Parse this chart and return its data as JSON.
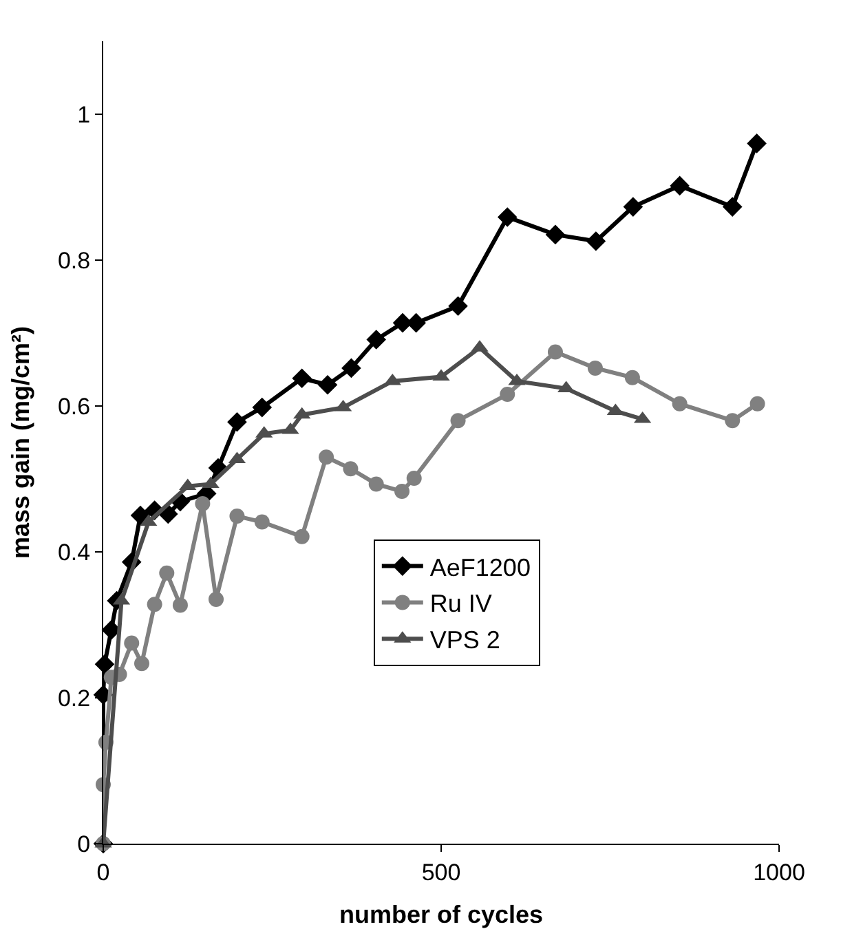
{
  "chart_data": {
    "type": "line",
    "xlabel": "number of cycles",
    "ylabel": "mass gain (mg/cm²)",
    "xlim": [
      0,
      1000
    ],
    "xticks": [
      0,
      500,
      1000
    ],
    "ylim": [
      0,
      1.1
    ],
    "yticks": [
      0,
      0.2,
      0.4,
      0.6,
      0.8,
      1
    ],
    "legend": "right",
    "line_style": "solid",
    "series": [
      {
        "name": "AeF1200",
        "color": "#000000",
        "marker": "diamond",
        "x": [
          0,
          0,
          2,
          12,
          20,
          42,
          55,
          76,
          96,
          114,
          153,
          170,
          198,
          235,
          294,
          332,
          367,
          404,
          443,
          463,
          525,
          598,
          669,
          729,
          784,
          853,
          931,
          967
        ],
        "values": [
          0,
          0.204,
          0.246,
          0.293,
          0.333,
          0.386,
          0.45,
          0.457,
          0.452,
          0.469,
          0.48,
          0.515,
          0.578,
          0.598,
          0.638,
          0.629,
          0.652,
          0.691,
          0.714,
          0.714,
          0.737,
          0.859,
          0.835,
          0.826,
          0.873,
          0.902,
          0.873,
          0.96
        ]
      },
      {
        "name": "Ru IV",
        "color": "#808080",
        "marker": "circle",
        "x": [
          0,
          0,
          4,
          12,
          24,
          42,
          57,
          76,
          94,
          114,
          147,
          167,
          198,
          235,
          294,
          330,
          366,
          404,
          442,
          460,
          525,
          598,
          669,
          728,
          783,
          853,
          931,
          968
        ],
        "values": [
          0,
          0.081,
          0.139,
          0.228,
          0.232,
          0.275,
          0.247,
          0.328,
          0.371,
          0.327,
          0.466,
          0.335,
          0.449,
          0.441,
          0.421,
          0.53,
          0.514,
          0.493,
          0.483,
          0.501,
          0.58,
          0.616,
          0.674,
          0.652,
          0.639,
          0.603,
          0.58,
          0.603
        ]
      },
      {
        "name": "VPS 2",
        "color": "#4d4d4d",
        "marker": "triangle",
        "x": [
          0,
          27,
          67,
          125,
          159,
          198,
          238,
          277,
          294,
          355,
          428,
          500,
          557,
          612,
          685,
          758,
          798
        ],
        "values": [
          0,
          0.333,
          0.441,
          0.49,
          0.493,
          0.527,
          0.562,
          0.567,
          0.588,
          0.598,
          0.634,
          0.64,
          0.68,
          0.634,
          0.624,
          0.593,
          0.582
        ]
      }
    ]
  }
}
